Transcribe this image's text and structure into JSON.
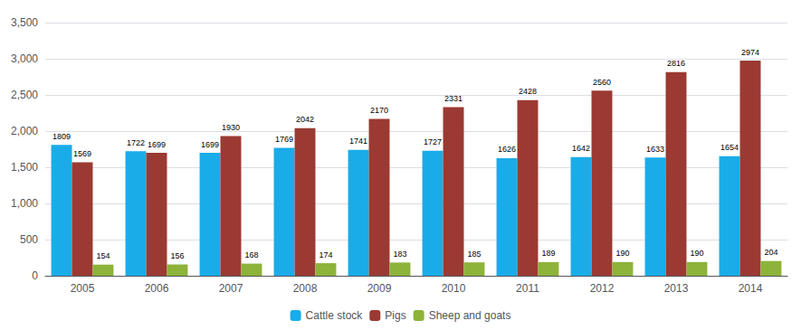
{
  "chart_data": {
    "type": "bar",
    "categories": [
      "2005",
      "2006",
      "2007",
      "2008",
      "2009",
      "2010",
      "2011",
      "2012",
      "2013",
      "2014"
    ],
    "series": [
      {
        "name": "Cattle stock",
        "color": "#1AACE8",
        "values": [
          1809,
          1722,
          1699,
          1769,
          1741,
          1727,
          1626,
          1642,
          1633,
          1654
        ]
      },
      {
        "name": "Pigs",
        "color": "#9B3A32",
        "values": [
          1569,
          1699,
          1930,
          2042,
          2170,
          2331,
          2428,
          2560,
          2816,
          2974
        ]
      },
      {
        "name": "Sheep and goats",
        "color": "#8DB33A",
        "values": [
          154,
          156,
          168,
          174,
          183,
          185,
          189,
          190,
          190,
          204
        ]
      }
    ],
    "ylim": [
      0,
      3500
    ],
    "yticks": [
      0,
      500,
      1000,
      1500,
      2000,
      2500,
      3000,
      3500
    ],
    "grid": true,
    "legend": "bottom",
    "data_labels": true
  }
}
